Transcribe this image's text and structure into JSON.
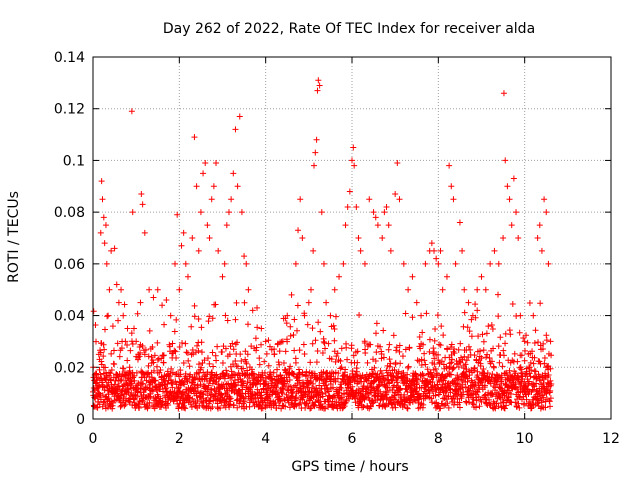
{
  "chart_data": {
    "type": "scatter",
    "title": "Day 262 of 2022, Rate Of TEC Index for receiver alda",
    "xlabel": "GPS time / hours",
    "ylabel": "ROTI / TECUs",
    "xlim": [
      0,
      12
    ],
    "ylim": [
      0,
      0.14
    ],
    "xticks": [
      "0",
      "2",
      "4",
      "6",
      "8",
      "10",
      "12"
    ],
    "yticks": [
      "0",
      "0.02",
      "0.04",
      "0.06",
      "0.08",
      "0.1",
      "0.12",
      "0.14"
    ],
    "grid": true,
    "marker": "+",
    "color": "#ff0000",
    "data_end_hours": 10.62,
    "points": [
      [
        0.02,
        0.012
      ],
      [
        0.05,
        0.008
      ],
      [
        0.08,
        0.015
      ],
      [
        0.12,
        0.01
      ],
      [
        0.15,
        0.019
      ],
      [
        0.18,
        0.072
      ],
      [
        0.2,
        0.092
      ],
      [
        0.22,
        0.085
      ],
      [
        0.25,
        0.078
      ],
      [
        0.27,
        0.068
      ],
      [
        0.3,
        0.075
      ],
      [
        0.32,
        0.06
      ],
      [
        0.35,
        0.04
      ],
      [
        0.38,
        0.05
      ],
      [
        0.42,
        0.065
      ],
      [
        0.5,
        0.066
      ],
      [
        0.55,
        0.052
      ],
      [
        0.6,
        0.045
      ],
      [
        0.65,
        0.05
      ],
      [
        0.7,
        0.04
      ],
      [
        0.75,
        0.03
      ],
      [
        0.8,
        0.035
      ],
      [
        0.85,
        0.02
      ],
      [
        0.9,
        0.119
      ],
      [
        0.92,
        0.08
      ],
      [
        0.95,
        0.035
      ],
      [
        1.0,
        0.03
      ],
      [
        1.05,
        0.025
      ],
      [
        1.1,
        0.045
      ],
      [
        1.12,
        0.087
      ],
      [
        1.15,
        0.083
      ],
      [
        1.2,
        0.072
      ],
      [
        1.3,
        0.05
      ],
      [
        1.4,
        0.047
      ],
      [
        1.5,
        0.05
      ],
      [
        1.6,
        0.044
      ],
      [
        1.7,
        0.046
      ],
      [
        1.8,
        0.04
      ],
      [
        1.9,
        0.06
      ],
      [
        1.95,
        0.079
      ],
      [
        2.0,
        0.05
      ],
      [
        2.05,
        0.067
      ],
      [
        2.1,
        0.072
      ],
      [
        2.15,
        0.06
      ],
      [
        2.2,
        0.055
      ],
      [
        2.3,
        0.07
      ],
      [
        2.35,
        0.109
      ],
      [
        2.4,
        0.09
      ],
      [
        2.45,
        0.065
      ],
      [
        2.5,
        0.08
      ],
      [
        2.55,
        0.095
      ],
      [
        2.6,
        0.099
      ],
      [
        2.65,
        0.075
      ],
      [
        2.7,
        0.07
      ],
      [
        2.75,
        0.085
      ],
      [
        2.8,
        0.09
      ],
      [
        2.85,
        0.099
      ],
      [
        2.9,
        0.065
      ],
      [
        3.0,
        0.055
      ],
      [
        3.05,
        0.06
      ],
      [
        3.1,
        0.075
      ],
      [
        3.15,
        0.08
      ],
      [
        3.2,
        0.085
      ],
      [
        3.25,
        0.095
      ],
      [
        3.3,
        0.112
      ],
      [
        3.35,
        0.09
      ],
      [
        3.4,
        0.117
      ],
      [
        3.45,
        0.08
      ],
      [
        3.5,
        0.063
      ],
      [
        3.55,
        0.06
      ],
      [
        3.6,
        0.05
      ],
      [
        3.7,
        0.042
      ],
      [
        3.8,
        0.043
      ],
      [
        3.9,
        0.035
      ],
      [
        4.0,
        0.03
      ],
      [
        4.1,
        0.028
      ],
      [
        4.2,
        0.025
      ],
      [
        4.3,
        0.022
      ],
      [
        4.4,
        0.03
      ],
      [
        4.5,
        0.04
      ],
      [
        4.6,
        0.048
      ],
      [
        4.7,
        0.06
      ],
      [
        4.75,
        0.073
      ],
      [
        4.8,
        0.085
      ],
      [
        4.85,
        0.07
      ],
      [
        4.9,
        0.04
      ],
      [
        5.0,
        0.045
      ],
      [
        5.05,
        0.05
      ],
      [
        5.1,
        0.065
      ],
      [
        5.12,
        0.098
      ],
      [
        5.15,
        0.103
      ],
      [
        5.18,
        0.108
      ],
      [
        5.2,
        0.127
      ],
      [
        5.22,
        0.131
      ],
      [
        5.25,
        0.129
      ],
      [
        5.3,
        0.08
      ],
      [
        5.35,
        0.06
      ],
      [
        5.4,
        0.045
      ],
      [
        5.5,
        0.04
      ],
      [
        5.6,
        0.05
      ],
      [
        5.7,
        0.055
      ],
      [
        5.8,
        0.06
      ],
      [
        5.85,
        0.075
      ],
      [
        5.9,
        0.082
      ],
      [
        5.95,
        0.088
      ],
      [
        6.0,
        0.1
      ],
      [
        6.03,
        0.105
      ],
      [
        6.05,
        0.098
      ],
      [
        6.1,
        0.082
      ],
      [
        6.15,
        0.07
      ],
      [
        6.2,
        0.065
      ],
      [
        6.3,
        0.06
      ],
      [
        6.4,
        0.085
      ],
      [
        6.5,
        0.08
      ],
      [
        6.55,
        0.078
      ],
      [
        6.6,
        0.075
      ],
      [
        6.7,
        0.07
      ],
      [
        6.75,
        0.08
      ],
      [
        6.8,
        0.082
      ],
      [
        6.85,
        0.075
      ],
      [
        6.9,
        0.065
      ],
      [
        7.0,
        0.087
      ],
      [
        7.05,
        0.099
      ],
      [
        7.1,
        0.085
      ],
      [
        7.2,
        0.06
      ],
      [
        7.3,
        0.05
      ],
      [
        7.4,
        0.055
      ],
      [
        7.5,
        0.045
      ],
      [
        7.6,
        0.04
      ],
      [
        7.7,
        0.06
      ],
      [
        7.8,
        0.065
      ],
      [
        7.85,
        0.068
      ],
      [
        7.9,
        0.065
      ],
      [
        7.95,
        0.062
      ],
      [
        8.0,
        0.06
      ],
      [
        8.05,
        0.065
      ],
      [
        8.1,
        0.05
      ],
      [
        8.2,
        0.055
      ],
      [
        8.25,
        0.098
      ],
      [
        8.3,
        0.09
      ],
      [
        8.35,
        0.085
      ],
      [
        8.4,
        0.06
      ],
      [
        8.5,
        0.076
      ],
      [
        8.55,
        0.065
      ],
      [
        8.6,
        0.05
      ],
      [
        8.7,
        0.045
      ],
      [
        8.8,
        0.04
      ],
      [
        8.9,
        0.05
      ],
      [
        9.0,
        0.055
      ],
      [
        9.1,
        0.05
      ],
      [
        9.2,
        0.06
      ],
      [
        9.3,
        0.065
      ],
      [
        9.4,
        0.06
      ],
      [
        9.5,
        0.07
      ],
      [
        9.52,
        0.126
      ],
      [
        9.55,
        0.1
      ],
      [
        9.6,
        0.09
      ],
      [
        9.65,
        0.085
      ],
      [
        9.7,
        0.075
      ],
      [
        9.75,
        0.093
      ],
      [
        9.8,
        0.08
      ],
      [
        9.85,
        0.07
      ],
      [
        9.9,
        0.04
      ],
      [
        10.0,
        0.03
      ],
      [
        10.1,
        0.02
      ],
      [
        10.2,
        0.04
      ],
      [
        10.3,
        0.07
      ],
      [
        10.35,
        0.075
      ],
      [
        10.4,
        0.065
      ],
      [
        10.45,
        0.085
      ],
      [
        10.5,
        0.08
      ],
      [
        10.55,
        0.06
      ],
      [
        10.6,
        0.03
      ]
    ]
  }
}
